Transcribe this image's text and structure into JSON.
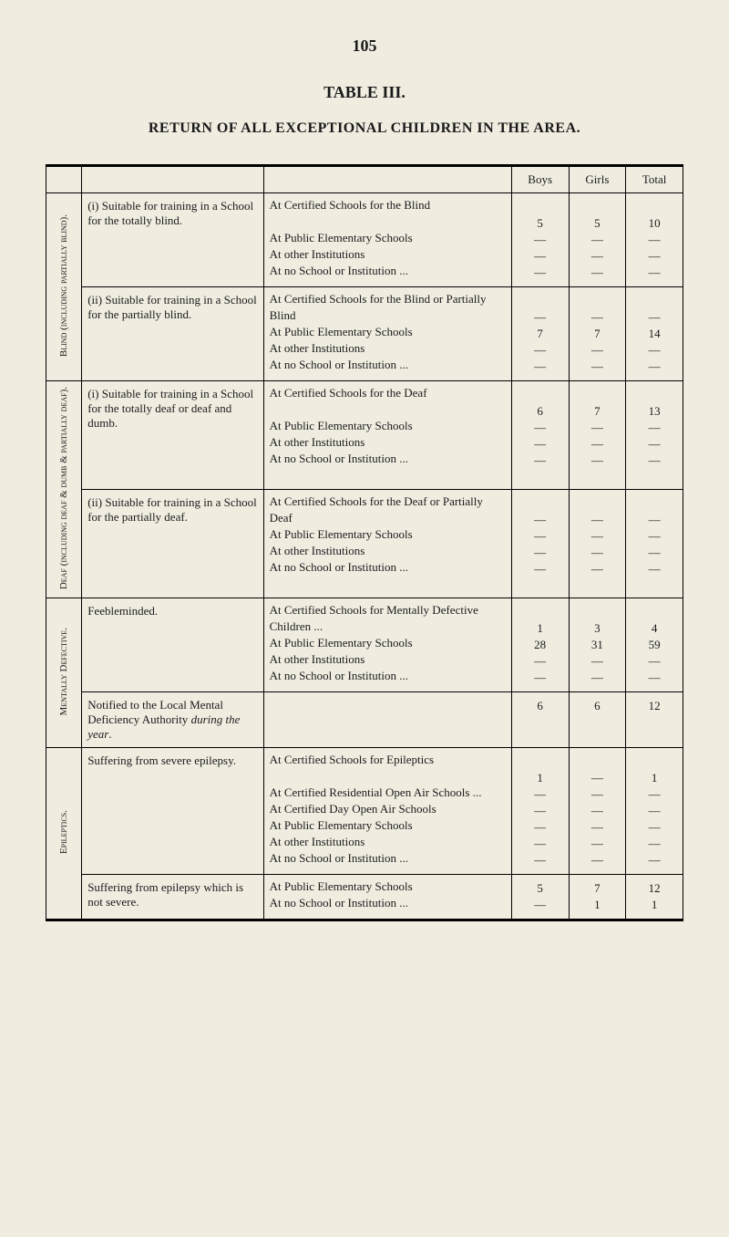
{
  "page_number": "105",
  "table_title": "TABLE III.",
  "table_caption": "RETURN OF ALL EXCEPTIONAL CHILDREN IN THE AREA.",
  "headers": {
    "boys": "Boys",
    "girls": "Girls",
    "total": "Total"
  },
  "categories": [
    {
      "label": "Blind (including partially blind).",
      "groups": [
        {
          "desc": "(i) Suitable for training in a School for the totally blind.",
          "rows": [
            {
              "item": "At Certified Schools for the Blind",
              "boys": "5",
              "girls": "5",
              "total": "10"
            },
            {
              "item": "At Public Elementary Schools",
              "boys": "—",
              "girls": "—",
              "total": "—"
            },
            {
              "item": "At other Institutions",
              "boys": "—",
              "girls": "—",
              "total": "—"
            },
            {
              "item": "At no School or Institution ...",
              "boys": "—",
              "girls": "—",
              "total": "—"
            }
          ]
        },
        {
          "desc": "(ii) Suitable for training in a School for the partially blind.",
          "rows": [
            {
              "item": "At Certified Schools for the Blind or Partially Blind",
              "boys": "—",
              "girls": "—",
              "total": "—"
            },
            {
              "item": "At Public Elementary Schools",
              "boys": "7",
              "girls": "7",
              "total": "14"
            },
            {
              "item": "At other Institutions",
              "boys": "—",
              "girls": "—",
              "total": "—"
            },
            {
              "item": "At no School or Institution ...",
              "boys": "—",
              "girls": "—",
              "total": "—"
            }
          ]
        }
      ]
    },
    {
      "label": "Deaf (including deaf & dumb & partially deaf).",
      "groups": [
        {
          "desc": "(i) Suitable for training in a School for the totally deaf or deaf and dumb.",
          "rows": [
            {
              "item": "At Certified Schools for the Deaf",
              "boys": "6",
              "girls": "7",
              "total": "13"
            },
            {
              "item": "At Public Elementary Schools",
              "boys": "—",
              "girls": "—",
              "total": "—"
            },
            {
              "item": "At other Institutions",
              "boys": "—",
              "girls": "—",
              "total": "—"
            },
            {
              "item": "At no School or Institution ...",
              "boys": "—",
              "girls": "—",
              "total": "—"
            }
          ]
        },
        {
          "desc": "(ii) Suitable for training in a School for the partially deaf.",
          "rows": [
            {
              "item": "At Certified Schools for the Deaf or Partially Deaf",
              "boys": "—",
              "girls": "—",
              "total": "—"
            },
            {
              "item": "At Public Elementary Schools",
              "boys": "—",
              "girls": "—",
              "total": "—"
            },
            {
              "item": "At other Institutions",
              "boys": "—",
              "girls": "—",
              "total": "—"
            },
            {
              "item": "At no School or Institution ...",
              "boys": "—",
              "girls": "—",
              "total": "—"
            }
          ]
        }
      ]
    },
    {
      "label": "Mentally Defective.",
      "groups": [
        {
          "desc": "Feebleminded.",
          "rows": [
            {
              "item": "At Certified Schools for Mentally Defective Children ...",
              "boys": "1",
              "girls": "3",
              "total": "4"
            },
            {
              "item": "At Public Elementary Schools",
              "boys": "28",
              "girls": "31",
              "total": "59"
            },
            {
              "item": "At other Institutions",
              "boys": "—",
              "girls": "—",
              "total": "—"
            },
            {
              "item": "At no School or Institution ...",
              "boys": "—",
              "girls": "—",
              "total": "—"
            }
          ]
        },
        {
          "desc": "Notified to the Local Mental Deficiency Authority during the year.",
          "rows": [
            {
              "item": "",
              "boys": "6",
              "girls": "6",
              "total": "12"
            }
          ]
        }
      ]
    },
    {
      "label": "Epileptics.",
      "groups": [
        {
          "desc": "Suffering from severe epilepsy.",
          "rows": [
            {
              "item": "At Certified Schools for Epileptics",
              "boys": "1",
              "girls": "—",
              "total": "1"
            },
            {
              "item": "At Certified Residential Open Air Schools ...",
              "boys": "—",
              "girls": "—",
              "total": "—"
            },
            {
              "item": "At Certified Day Open Air Schools",
              "boys": "—",
              "girls": "—",
              "total": "—"
            },
            {
              "item": "At Public Elementary Schools",
              "boys": "—",
              "girls": "—",
              "total": "—"
            },
            {
              "item": "At other Institutions",
              "boys": "—",
              "girls": "—",
              "total": "—"
            },
            {
              "item": "At no School or Institution ...",
              "boys": "—",
              "girls": "—",
              "total": "—"
            }
          ]
        },
        {
          "desc": "Suffering from epilepsy which is not severe.",
          "rows": [
            {
              "item": "At Public Elementary Schools",
              "boys": "5",
              "girls": "7",
              "total": "12"
            },
            {
              "item": "At no School or Institution ...",
              "boys": "—",
              "girls": "1",
              "total": "1"
            }
          ]
        }
      ]
    }
  ],
  "style": {
    "background_color": "#f0ede0",
    "text_color": "#1a1a1a",
    "border_color": "#000000",
    "font_family": "Times New Roman",
    "page_number_fontsize": 18,
    "title_fontsize": 18,
    "caption_fontsize": 16,
    "body_fontsize": 13
  }
}
